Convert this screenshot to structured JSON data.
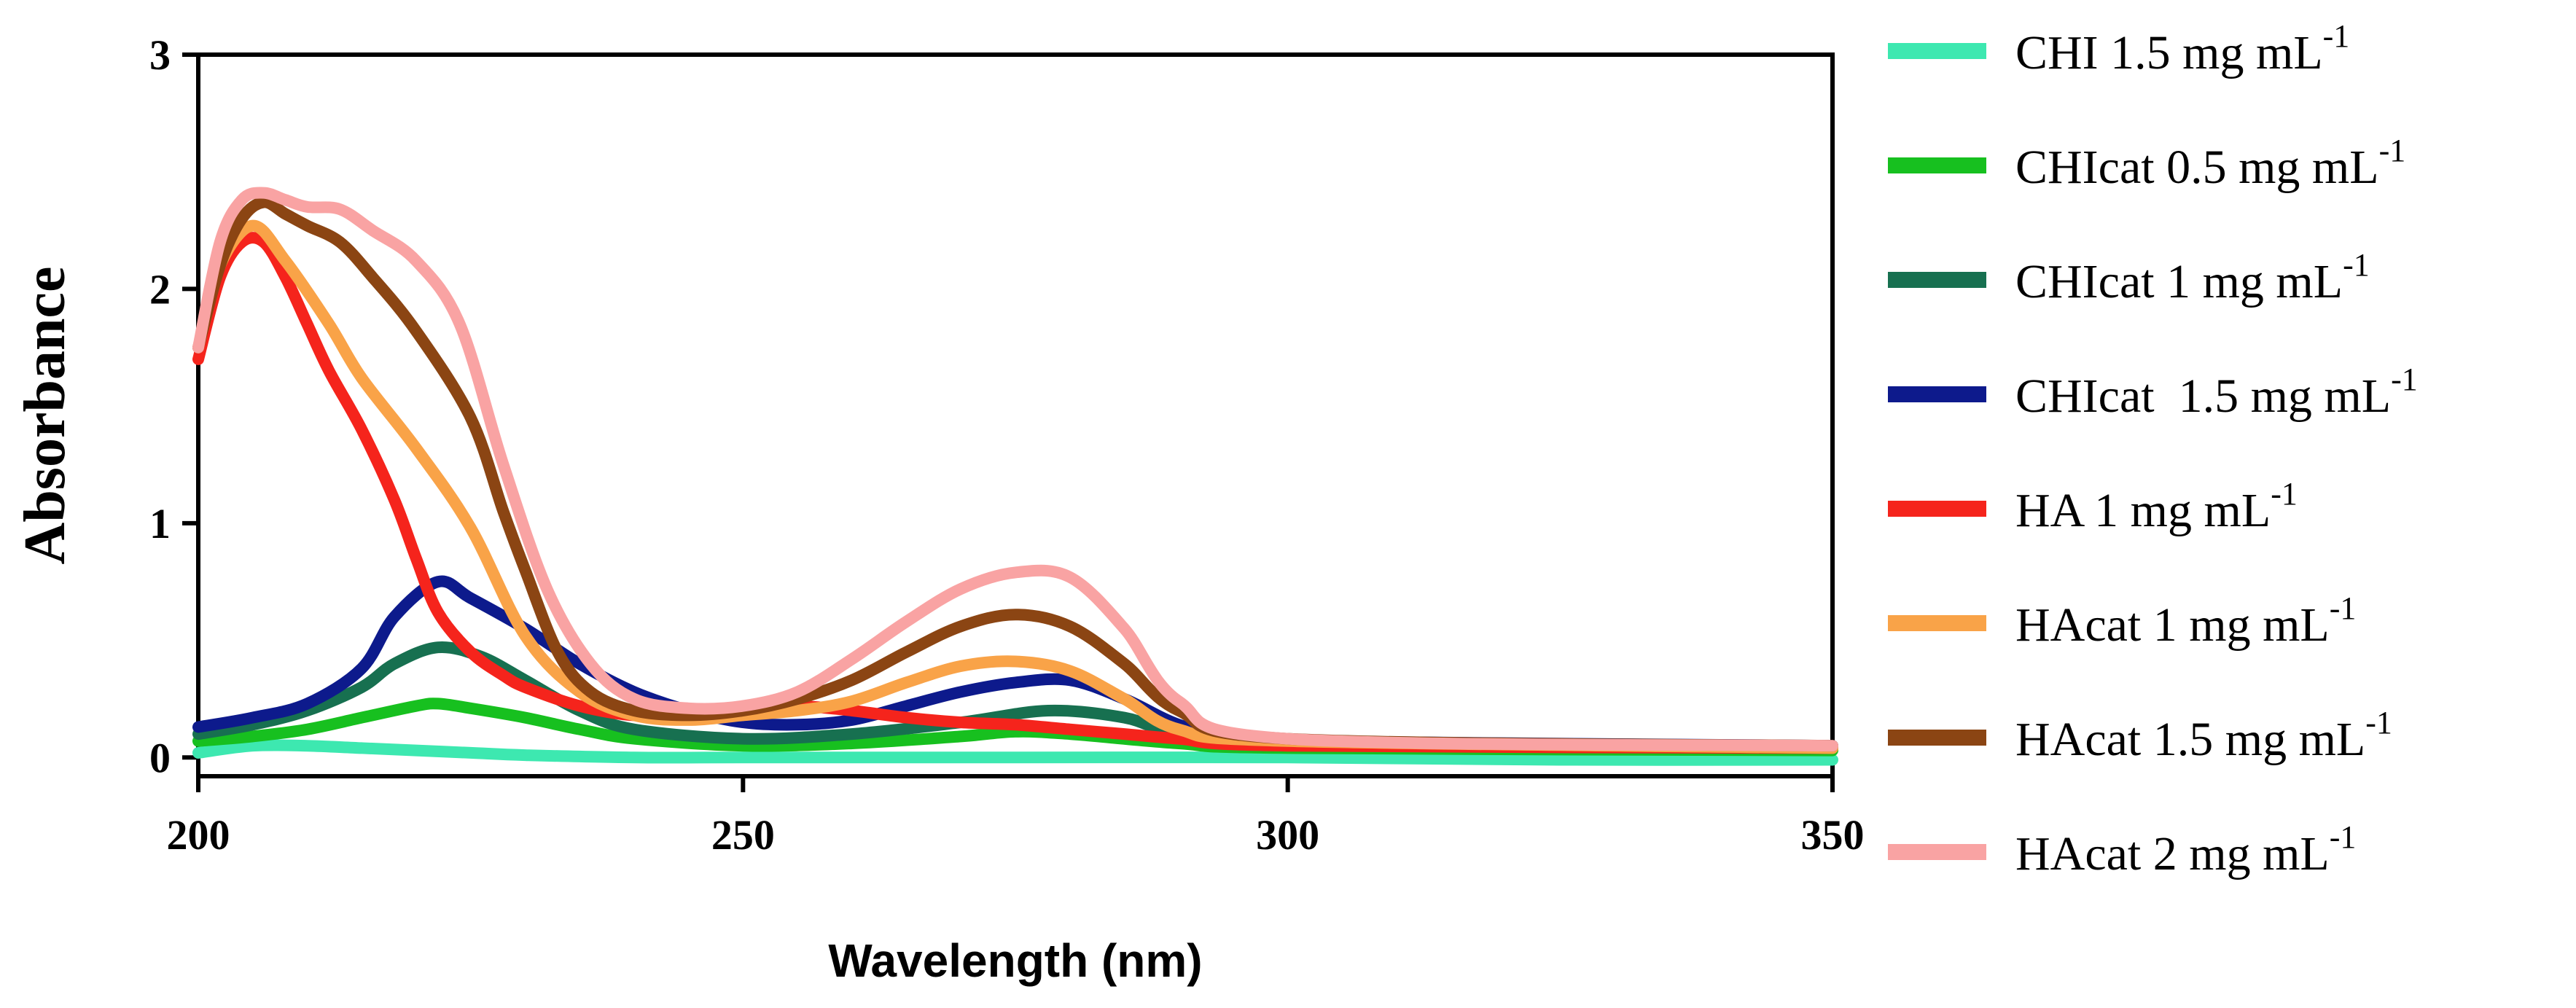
{
  "chart_data": {
    "type": "line",
    "title": "",
    "xlabel": "Wavelength (nm)",
    "ylabel": "Absorbance",
    "xlim": [
      200,
      350
    ],
    "ylim": [
      -0.08,
      3
    ],
    "xticks": [
      200,
      250,
      300,
      350
    ],
    "yticks": [
      0,
      1,
      2,
      3
    ],
    "xtick_labels": [
      "200",
      "250",
      "300",
      "350"
    ],
    "ytick_labels": [
      "0",
      "1",
      "2",
      "3"
    ],
    "legend_position": "right",
    "unit_suffix": "-1",
    "series": [
      {
        "name": "CHI 1.5 mg mL",
        "color": "#3de8b0",
        "x": [
          200,
          205,
          210,
          215,
          220,
          225,
          230,
          240,
          250,
          275,
          300,
          325,
          350
        ],
        "y": [
          0.02,
          0.05,
          0.05,
          0.04,
          0.03,
          0.02,
          0.01,
          0.0,
          0.0,
          0.0,
          0.0,
          -0.01,
          -0.01
        ]
      },
      {
        "name": "CHIcat 0.5 mg mL",
        "color": "#17c01f",
        "x": [
          200,
          205,
          210,
          215,
          220,
          222,
          225,
          230,
          235,
          240,
          250,
          260,
          270,
          275,
          280,
          290,
          300,
          350
        ],
        "y": [
          0.07,
          0.09,
          0.12,
          0.17,
          0.22,
          0.23,
          0.21,
          0.17,
          0.12,
          0.08,
          0.05,
          0.06,
          0.09,
          0.11,
          0.1,
          0.06,
          0.04,
          0.03
        ]
      },
      {
        "name": "CHIcat 1 mg mL",
        "color": "#177050",
        "x": [
          200,
          205,
          210,
          215,
          218,
          222,
          226,
          230,
          235,
          240,
          250,
          260,
          270,
          278,
          285,
          290,
          300,
          350
        ],
        "y": [
          0.1,
          0.14,
          0.2,
          0.3,
          0.4,
          0.47,
          0.43,
          0.33,
          0.2,
          0.12,
          0.08,
          0.1,
          0.15,
          0.2,
          0.17,
          0.1,
          0.06,
          0.04
        ]
      },
      {
        "name": "CHIcat  1.5 mg mL",
        "color": "#0d1a8c",
        "x": [
          200,
          205,
          210,
          215,
          218,
          222,
          225,
          230,
          235,
          240,
          245,
          250,
          255,
          260,
          265,
          270,
          275,
          280,
          285,
          290,
          295,
          300,
          350
        ],
        "y": [
          0.13,
          0.17,
          0.23,
          0.38,
          0.6,
          0.75,
          0.68,
          0.55,
          0.4,
          0.28,
          0.2,
          0.15,
          0.14,
          0.16,
          0.22,
          0.28,
          0.32,
          0.33,
          0.25,
          0.14,
          0.09,
          0.07,
          0.05
        ]
      },
      {
        "name": "HA 1 mg mL",
        "color": "#f5241c",
        "x": [
          200,
          202,
          204,
          206,
          208,
          210,
          212,
          215,
          218,
          220,
          222,
          225,
          228,
          230,
          235,
          240,
          245,
          250,
          255,
          260,
          265,
          270,
          275,
          280,
          285,
          290,
          300,
          350
        ],
        "y": [
          1.7,
          2.05,
          2.2,
          2.2,
          2.05,
          1.85,
          1.65,
          1.4,
          1.1,
          0.85,
          0.62,
          0.45,
          0.35,
          0.3,
          0.22,
          0.18,
          0.19,
          0.21,
          0.22,
          0.2,
          0.17,
          0.15,
          0.14,
          0.12,
          0.1,
          0.08,
          0.05,
          0.04
        ]
      },
      {
        "name": "HAcat 1 mg mL",
        "color": "#f9a348",
        "x": [
          200,
          202,
          205,
          208,
          212,
          215,
          220,
          225,
          230,
          235,
          240,
          245,
          250,
          255,
          260,
          265,
          270,
          275,
          280,
          285,
          290,
          300,
          350
        ],
        "y": [
          1.75,
          2.1,
          2.27,
          2.12,
          1.85,
          1.62,
          1.32,
          0.98,
          0.52,
          0.28,
          0.18,
          0.16,
          0.18,
          0.2,
          0.24,
          0.32,
          0.39,
          0.41,
          0.37,
          0.25,
          0.12,
          0.07,
          0.04
        ]
      },
      {
        "name": "HAcat 1.5 mg mL",
        "color": "#8b4513",
        "x": [
          200,
          202,
          204,
          206,
          208,
          210,
          213,
          216,
          220,
          225,
          228,
          230,
          233,
          236,
          240,
          245,
          250,
          255,
          260,
          265,
          270,
          275,
          280,
          285,
          290,
          300,
          350
        ],
        "y": [
          1.75,
          2.1,
          2.3,
          2.37,
          2.32,
          2.27,
          2.2,
          2.05,
          1.82,
          1.45,
          1.05,
          0.8,
          0.45,
          0.28,
          0.2,
          0.18,
          0.2,
          0.25,
          0.33,
          0.45,
          0.56,
          0.61,
          0.56,
          0.4,
          0.2,
          0.08,
          0.05
        ]
      },
      {
        "name": "HAcat 2 mg mL",
        "color": "#f9a3a3",
        "x": [
          200,
          202,
          204,
          206,
          208,
          210,
          213,
          216,
          220,
          224,
          228,
          232,
          236,
          240,
          245,
          250,
          255,
          260,
          265,
          270,
          275,
          280,
          285,
          290,
          300,
          350
        ],
        "y": [
          1.75,
          2.2,
          2.38,
          2.41,
          2.38,
          2.35,
          2.34,
          2.25,
          2.12,
          1.85,
          1.25,
          0.72,
          0.4,
          0.25,
          0.21,
          0.22,
          0.28,
          0.42,
          0.58,
          0.72,
          0.79,
          0.77,
          0.55,
          0.24,
          0.08,
          0.05
        ]
      }
    ]
  }
}
